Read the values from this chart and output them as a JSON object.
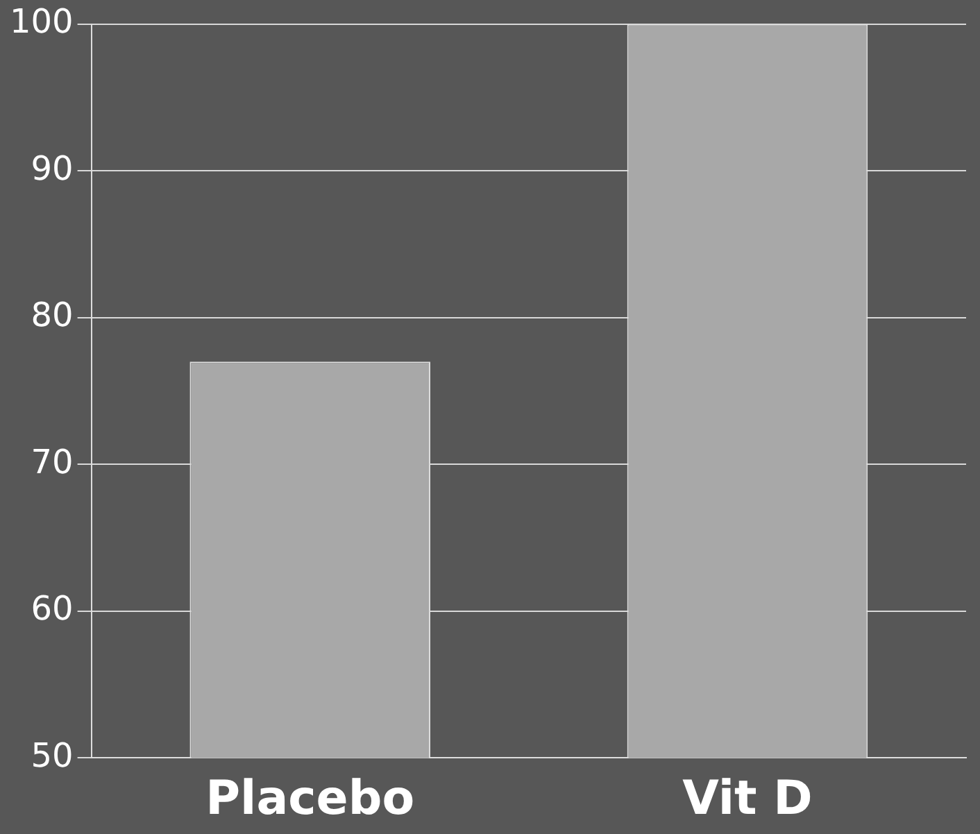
{
  "chart_data": {
    "type": "bar",
    "categories": [
      "Placebo",
      "Vit D"
    ],
    "values": [
      77,
      100
    ],
    "color": "#a8a8a8",
    "ylim": [
      50,
      100
    ],
    "yticks": [
      50,
      60,
      70,
      80,
      90,
      100
    ],
    "grid": "y"
  }
}
